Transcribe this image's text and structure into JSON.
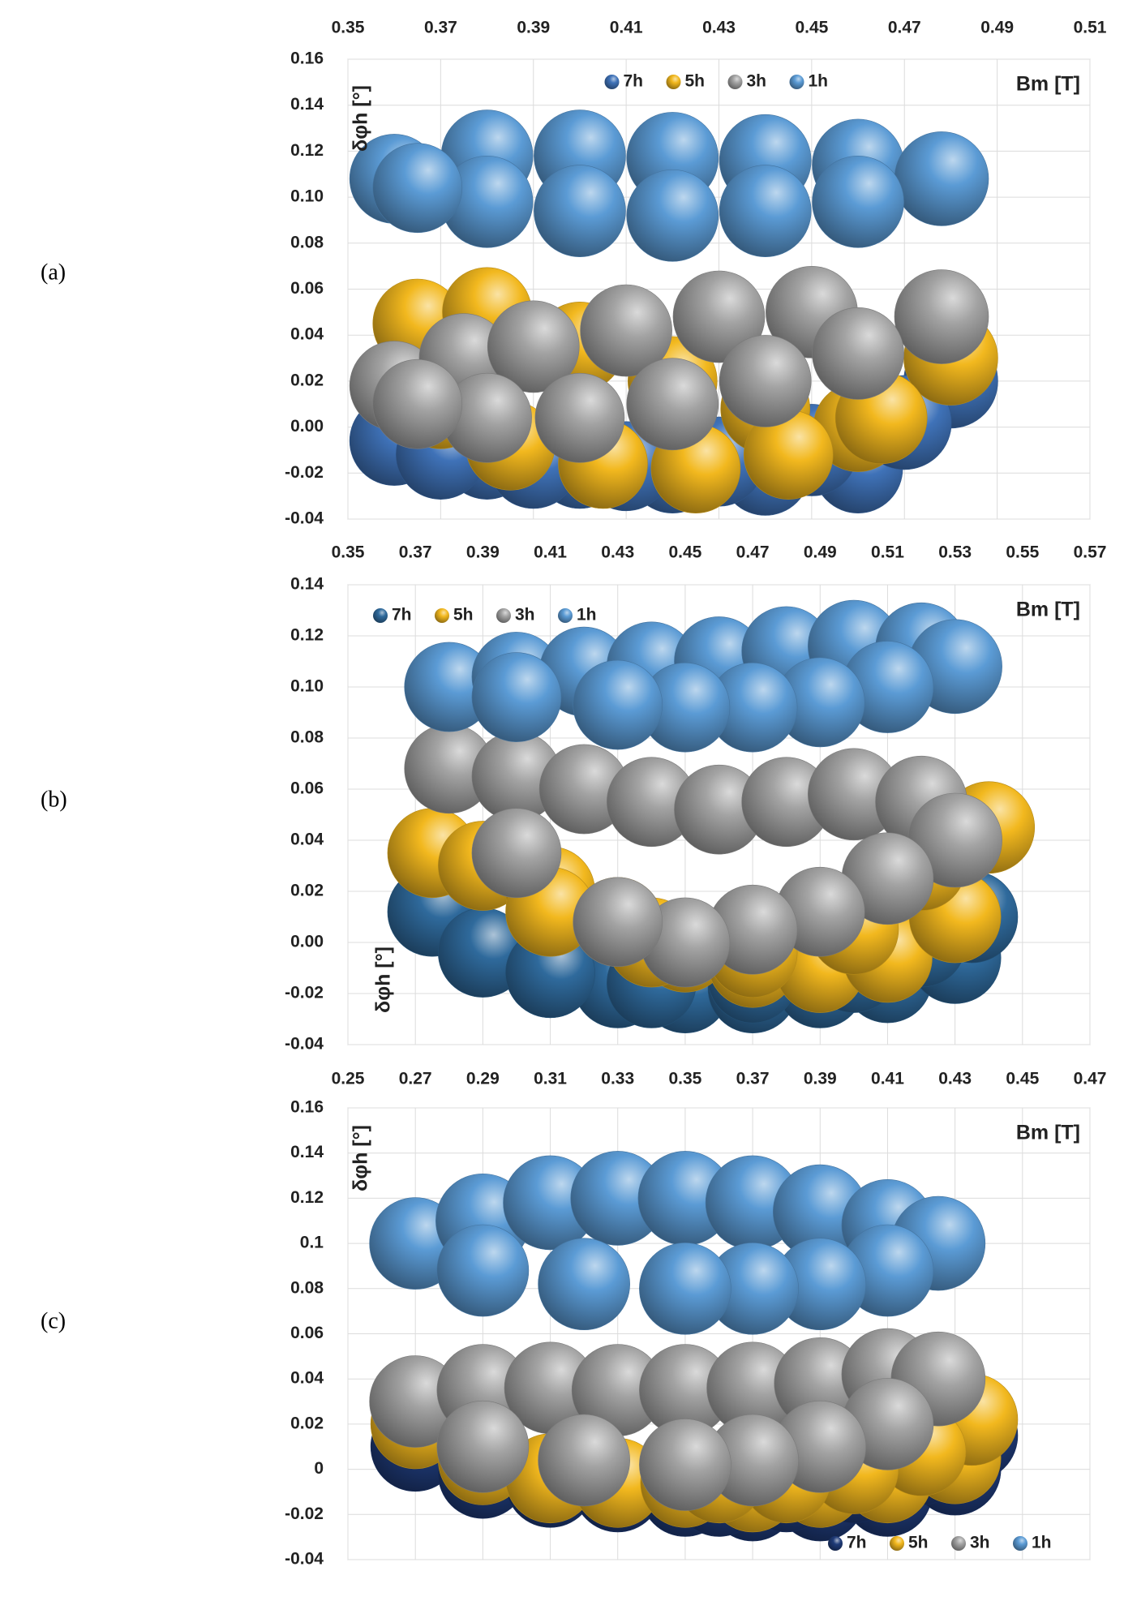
{
  "chart_data": [
    {
      "type": "bubble",
      "panel_label": "(a)",
      "x_label": "Bm [T]",
      "y_label": "δφh [°]",
      "legend": "top",
      "xaxis": "top",
      "grid": true,
      "xlim": [
        0.35,
        0.51
      ],
      "xticks": [
        0.35,
        0.37,
        0.39,
        0.41,
        0.43,
        0.45,
        0.47,
        0.49,
        0.51
      ],
      "ylim": [
        -0.04,
        0.16
      ],
      "yticks": [
        -0.04,
        -0.02,
        {
          "value": 0,
          "label": "0.00"
        },
        0.02,
        0.04,
        0.06,
        0.08,
        {
          "value": 0.1,
          "label": "0.10"
        },
        0.12,
        0.14,
        0.16
      ],
      "series": [
        {
          "name": "7h",
          "color": "#3f72b8",
          "x": [
            0.36,
            0.38,
            0.4,
            0.42,
            0.44,
            0.46,
            0.48,
            0.47,
            0.45,
            0.43,
            0.41,
            0.39,
            0.37
          ],
          "values": [
            -0.006,
            -0.012,
            -0.016,
            -0.018,
            -0.019,
            -0.018,
            0.02,
            0.002,
            -0.01,
            -0.015,
            -0.017,
            -0.016,
            -0.012
          ],
          "sizes": [
            0.9,
            0.9,
            0.9,
            0.9,
            0.9,
            0.9,
            1,
            1,
            0.95,
            0.9,
            0.9,
            0.9,
            0.9
          ]
        },
        {
          "name": "5h",
          "color": "#f2b81e",
          "x": [
            0.365,
            0.38,
            0.4,
            0.42,
            0.44,
            0.46,
            0.48,
            0.465,
            0.445,
            0.425,
            0.405,
            0.385,
            0.37
          ],
          "values": [
            0.045,
            0.05,
            0.035,
            0.02,
            0.008,
            0.0,
            0.03,
            0.004,
            -0.012,
            -0.018,
            -0.016,
            -0.008,
            0.01
          ],
          "sizes": [
            0.9,
            0.9,
            0.9,
            0.9,
            0.9,
            0.9,
            1,
            0.95,
            0.9,
            0.9,
            0.9,
            0.9,
            0.9
          ]
        },
        {
          "name": "3h",
          "color": "#a3a3a3",
          "x": [
            0.36,
            0.375,
            0.39,
            0.41,
            0.43,
            0.45,
            0.478,
            0.46,
            0.44,
            0.42,
            0.4,
            0.38,
            0.365
          ],
          "values": [
            0.018,
            0.03,
            0.035,
            0.042,
            0.048,
            0.05,
            0.048,
            0.032,
            0.02,
            0.01,
            0.004,
            0.004,
            0.01
          ],
          "sizes": [
            0.9,
            0.9,
            0.95,
            0.95,
            0.95,
            0.95,
            1,
            0.95,
            0.95,
            0.95,
            0.9,
            0.9,
            0.9
          ]
        },
        {
          "name": "1h",
          "color": "#5b9bd5",
          "x": [
            0.36,
            0.38,
            0.4,
            0.42,
            0.44,
            0.46,
            0.478,
            0.46,
            0.44,
            0.42,
            0.4,
            0.38,
            0.365
          ],
          "values": [
            0.108,
            0.118,
            0.118,
            0.117,
            0.116,
            0.114,
            0.108,
            0.098,
            0.094,
            0.092,
            0.094,
            0.098,
            0.104
          ],
          "sizes": [
            0.9,
            0.95,
            0.95,
            0.95,
            0.95,
            0.95,
            1,
            0.95,
            0.95,
            0.95,
            0.95,
            0.95,
            0.9
          ]
        }
      ]
    },
    {
      "type": "bubble",
      "panel_label": "(b)",
      "x_label": "Bm [T]",
      "y_label": "δφh [°]",
      "legend": "top-left",
      "xaxis": "top",
      "grid": true,
      "xlim": [
        0.35,
        0.57
      ],
      "xticks": [
        0.35,
        0.37,
        0.39,
        0.41,
        0.43,
        0.45,
        0.47,
        0.49,
        0.51,
        0.53,
        0.55,
        0.57
      ],
      "ylim": [
        -0.04,
        0.14
      ],
      "yticks": [
        -0.04,
        -0.02,
        {
          "value": 0,
          "label": "0.00"
        },
        0.02,
        0.04,
        0.06,
        0.08,
        {
          "value": 0.1,
          "label": "0.10"
        },
        0.12,
        0.14
      ],
      "series": [
        {
          "name": "7h",
          "color": "#2f6a9c",
          "x": [
            0.375,
            0.39,
            0.41,
            0.43,
            0.45,
            0.47,
            0.49,
            0.51,
            0.53,
            0.535,
            0.52,
            0.5,
            0.47,
            0.44,
            0.41
          ],
          "values": [
            0.012,
            -0.004,
            -0.012,
            -0.016,
            -0.018,
            -0.018,
            -0.016,
            -0.014,
            -0.006,
            0.01,
            0.0,
            -0.01,
            -0.014,
            -0.016,
            -0.012
          ],
          "sizes": [
            0.9,
            0.9,
            0.9,
            0.9,
            0.9,
            0.9,
            0.9,
            0.9,
            0.95,
            0.95,
            0.9,
            0.9,
            0.9,
            0.9,
            0.9
          ]
        },
        {
          "name": "5h",
          "color": "#f2b81e",
          "x": [
            0.375,
            0.39,
            0.41,
            0.43,
            0.45,
            0.47,
            0.49,
            0.51,
            0.53,
            0.54,
            0.52,
            0.5,
            0.47,
            0.44,
            0.41
          ],
          "values": [
            0.035,
            0.03,
            0.02,
            0.008,
            -0.002,
            -0.008,
            -0.01,
            -0.006,
            0.01,
            0.045,
            0.03,
            0.005,
            -0.004,
            0.0,
            0.012
          ],
          "sizes": [
            0.9,
            0.9,
            0.9,
            0.9,
            0.9,
            0.9,
            0.9,
            0.9,
            0.95,
            0.95,
            0.9,
            0.9,
            0.9,
            0.9,
            0.9
          ]
        },
        {
          "name": "3h",
          "color": "#a3a3a3",
          "x": [
            0.38,
            0.4,
            0.42,
            0.44,
            0.46,
            0.48,
            0.5,
            0.52,
            0.53,
            0.51,
            0.49,
            0.47,
            0.45,
            0.43,
            0.4
          ],
          "values": [
            0.068,
            0.065,
            0.06,
            0.055,
            0.052,
            0.055,
            0.058,
            0.055,
            0.04,
            0.025,
            0.012,
            0.005,
            0.0,
            0.008,
            0.035
          ],
          "sizes": [
            0.9,
            0.9,
            0.9,
            0.9,
            0.9,
            0.9,
            0.95,
            0.95,
            1,
            0.95,
            0.9,
            0.9,
            0.9,
            0.9,
            0.9
          ]
        },
        {
          "name": "1h",
          "color": "#5b9bd5",
          "x": [
            0.38,
            0.4,
            0.42,
            0.44,
            0.46,
            0.48,
            0.5,
            0.52,
            0.53,
            0.51,
            0.49,
            0.47,
            0.45,
            0.43,
            0.4
          ],
          "values": [
            0.1,
            0.104,
            0.106,
            0.108,
            0.11,
            0.114,
            0.116,
            0.115,
            0.108,
            0.1,
            0.094,
            0.092,
            0.092,
            0.093,
            0.096
          ],
          "sizes": [
            0.9,
            0.9,
            0.9,
            0.9,
            0.9,
            0.9,
            0.95,
            0.95,
            1,
            0.95,
            0.9,
            0.9,
            0.9,
            0.9,
            0.9
          ]
        }
      ]
    },
    {
      "type": "bubble",
      "panel_label": "(c)",
      "x_label": "Bm [T]",
      "y_label": "δφh [°]",
      "legend": "bottom-right",
      "xaxis": "top",
      "grid": true,
      "xlim": [
        0.25,
        0.47
      ],
      "xticks": [
        0.25,
        0.27,
        0.29,
        0.31,
        0.33,
        0.35,
        0.37,
        0.39,
        0.41,
        0.43,
        0.45,
        0.47
      ],
      "ylim": [
        -0.04,
        0.16
      ],
      "yticks": [
        -0.04,
        -0.02,
        0,
        0.02,
        0.04,
        0.06,
        0.08,
        0.1,
        0.12,
        0.14,
        0.16
      ],
      "series": [
        {
          "name": "7h",
          "color": "#1f3b78",
          "x": [
            0.27,
            0.29,
            0.31,
            0.33,
            0.35,
            0.37,
            0.39,
            0.41,
            0.43,
            0.435,
            0.42,
            0.4,
            0.38,
            0.36
          ],
          "values": [
            0.01,
            -0.002,
            -0.006,
            -0.008,
            -0.01,
            -0.012,
            -0.012,
            -0.01,
            0.0,
            0.015,
            0.004,
            -0.004,
            -0.008,
            -0.01
          ],
          "sizes": [
            0.9,
            0.9,
            0.9,
            0.9,
            0.9,
            0.9,
            0.9,
            0.9,
            0.95,
            0.95,
            0.9,
            0.9,
            0.9,
            0.9
          ]
        },
        {
          "name": "5h",
          "color": "#f2b81e",
          "x": [
            0.27,
            0.29,
            0.31,
            0.33,
            0.35,
            0.37,
            0.39,
            0.41,
            0.43,
            0.435,
            0.42,
            0.4,
            0.38,
            0.36
          ],
          "values": [
            0.02,
            0.004,
            -0.004,
            -0.006,
            -0.006,
            -0.008,
            -0.006,
            -0.004,
            0.005,
            0.022,
            0.008,
            0.0,
            -0.004,
            -0.004
          ],
          "sizes": [
            0.9,
            0.9,
            0.9,
            0.9,
            0.9,
            0.9,
            0.9,
            0.9,
            0.95,
            0.95,
            0.9,
            0.9,
            0.9,
            0.9
          ]
        },
        {
          "name": "3h",
          "color": "#a3a3a3",
          "x": [
            0.27,
            0.29,
            0.31,
            0.33,
            0.35,
            0.37,
            0.39,
            0.41,
            0.425,
            0.41,
            0.39,
            0.37,
            0.35,
            0.32,
            0.29
          ],
          "values": [
            0.03,
            0.035,
            0.036,
            0.035,
            0.035,
            0.036,
            0.038,
            0.042,
            0.04,
            0.02,
            0.01,
            0.004,
            0.002,
            0.004,
            0.01
          ],
          "sizes": [
            0.95,
            0.95,
            0.95,
            0.95,
            0.95,
            0.95,
            0.95,
            0.95,
            1,
            0.95,
            0.95,
            0.95,
            0.95,
            0.95,
            0.95
          ]
        },
        {
          "name": "1h",
          "color": "#5b9bd5",
          "x": [
            0.27,
            0.29,
            0.31,
            0.33,
            0.35,
            0.37,
            0.39,
            0.41,
            0.425,
            0.41,
            0.39,
            0.37,
            0.35,
            0.32,
            0.29
          ],
          "values": [
            0.1,
            0.11,
            0.118,
            0.12,
            0.12,
            0.118,
            0.114,
            0.108,
            0.1,
            0.088,
            0.082,
            0.08,
            0.08,
            0.082,
            0.088
          ],
          "sizes": [
            0.95,
            1,
            1,
            1,
            1,
            1,
            1,
            0.95,
            1,
            0.95,
            0.95,
            0.95,
            0.95,
            0.95,
            0.95
          ]
        }
      ]
    }
  ]
}
